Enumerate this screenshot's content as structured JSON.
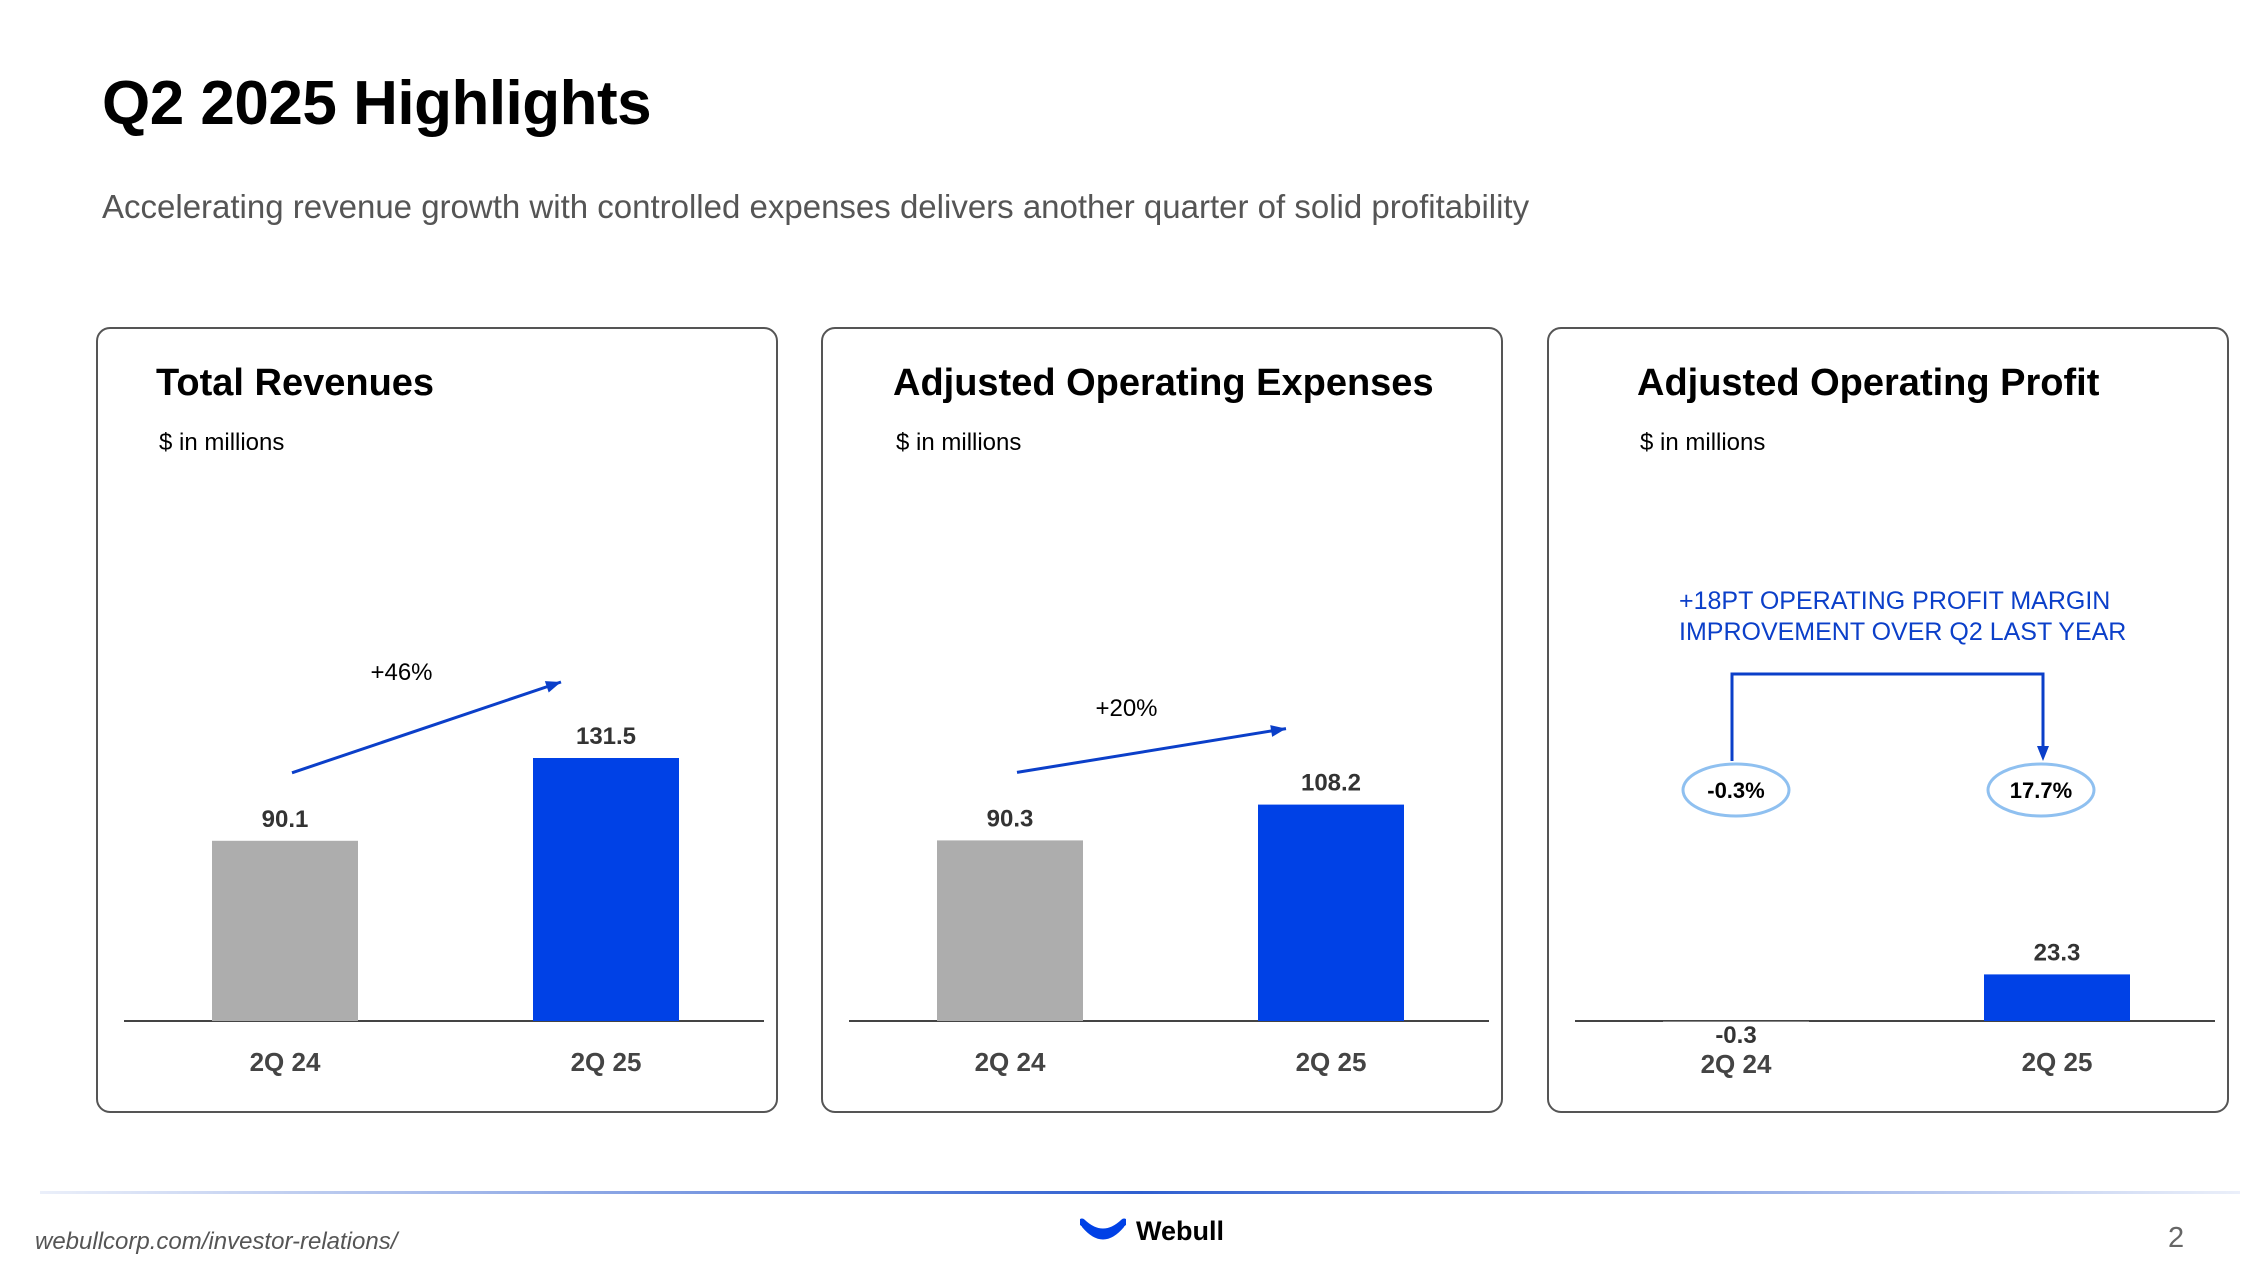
{
  "header": {
    "title": "Q2 2025 Highlights",
    "subtitle": "Accelerating revenue growth with controlled expenses delivers another quarter of solid profitability"
  },
  "colors": {
    "gray_bar": "#adadad",
    "blue_bar": "#0041e6",
    "arrow": "#0b3fc9",
    "ellipse": "#8fc0f0",
    "annotation_text": "#0b3fc9"
  },
  "chart_data": [
    {
      "type": "bar",
      "title": "Total Revenues",
      "subtitle": "$ in millions",
      "categories": [
        "2Q 24",
        "2Q 25"
      ],
      "values": [
        90.1,
        131.5
      ],
      "value_labels": [
        "90.1",
        "131.5"
      ],
      "growth_label": "+46%"
    },
    {
      "type": "bar",
      "title": "Adjusted Operating Expenses",
      "subtitle": "$ in millions",
      "categories": [
        "2Q 24",
        "2Q 25"
      ],
      "values": [
        90.3,
        108.2
      ],
      "value_labels": [
        "90.3",
        "108.2"
      ],
      "growth_label": "+20%"
    },
    {
      "type": "bar",
      "title": "Adjusted Operating Profit",
      "subtitle": "$ in millions",
      "categories": [
        "2Q 24",
        "2Q 25"
      ],
      "values": [
        -0.3,
        23.3
      ],
      "value_labels": [
        "-0.3",
        "23.3"
      ],
      "annotation": [
        "+18PT OPERATING PROFIT MARGIN",
        "IMPROVEMENT OVER Q2 LAST YEAR"
      ],
      "margins": [
        "-0.3%",
        "17.7%"
      ]
    }
  ],
  "footer": {
    "url": "webullcorp.com/investor-relations/",
    "brand": "Webull",
    "page": "2"
  }
}
